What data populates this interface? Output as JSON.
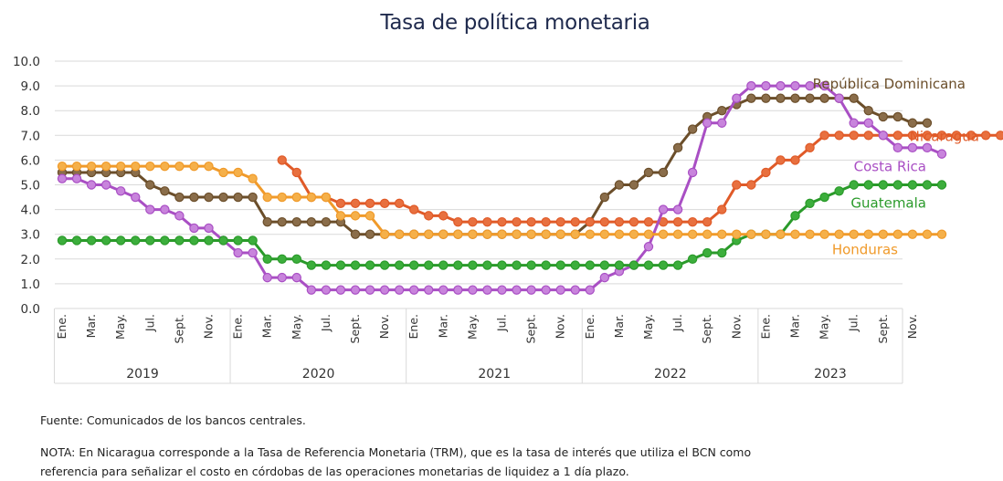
{
  "chart_data": {
    "type": "line",
    "title": "Tasa de política monetaria",
    "ylim": [
      0,
      10
    ],
    "yticks": [
      "0.0",
      "1.0",
      "2.0",
      "3.0",
      "4.0",
      "5.0",
      "6.0",
      "7.0",
      "8.0",
      "9.0",
      "10.0"
    ],
    "grid": true,
    "x_start": "2019-01",
    "month_tick_labels": [
      "Ene.",
      "Mar.",
      "May.",
      "Jul.",
      "Sept.",
      "Nov."
    ],
    "years": [
      "2019",
      "2020",
      "2021",
      "2022",
      "2023"
    ],
    "legend": "labels at end of lines",
    "series": [
      {
        "name": "República Dominicana",
        "color": "#6b4e2a",
        "marker_color": "#8a6d4a",
        "start_index": 0,
        "values": [
          5.5,
          5.5,
          5.5,
          5.5,
          5.5,
          5.5,
          5.0,
          4.75,
          4.5,
          4.5,
          4.5,
          4.5,
          4.5,
          4.5,
          3.5,
          3.5,
          3.5,
          3.5,
          3.5,
          3.5,
          3.0,
          3.0,
          3.0,
          3.0,
          3.0,
          3.0,
          3.0,
          3.0,
          3.0,
          3.0,
          3.0,
          3.0,
          3.0,
          3.0,
          3.0,
          3.0,
          3.5,
          4.5,
          5.0,
          5.0,
          5.5,
          5.5,
          6.5,
          7.25,
          7.75,
          8.0,
          8.25,
          8.5,
          8.5,
          8.5,
          8.5,
          8.5,
          8.5,
          8.5,
          8.5,
          8.0,
          7.75,
          7.75,
          7.5,
          7.5
        ]
      },
      {
        "name": "Nicaragua",
        "color": "#e05a28",
        "marker_color": "#e8703f",
        "start_index": 15,
        "values": [
          6.0,
          5.5,
          4.5,
          4.5,
          4.25,
          4.25,
          4.25,
          4.25,
          4.25,
          4.0,
          3.75,
          3.75,
          3.5,
          3.5,
          3.5,
          3.5,
          3.5,
          3.5,
          3.5,
          3.5,
          3.5,
          3.5,
          3.5,
          3.5,
          3.5,
          3.5,
          3.5,
          3.5,
          3.5,
          3.5,
          4.0,
          5.0,
          5.0,
          5.5,
          6.0,
          6.0,
          6.5,
          7.0,
          7.0,
          7.0,
          7.0,
          7.0,
          7.0,
          7.0,
          7.0,
          7.0,
          7.0,
          7.0,
          7.0,
          7.0,
          7.0
        ]
      },
      {
        "name": "Costa Rica",
        "color": "#a94fc4",
        "marker_color": "#c884dc",
        "start_index": 0,
        "values": [
          5.25,
          5.25,
          5.0,
          5.0,
          4.75,
          4.5,
          4.0,
          4.0,
          3.75,
          3.25,
          3.25,
          2.75,
          2.25,
          2.25,
          1.25,
          1.25,
          1.25,
          0.75,
          0.75,
          0.75,
          0.75,
          0.75,
          0.75,
          0.75,
          0.75,
          0.75,
          0.75,
          0.75,
          0.75,
          0.75,
          0.75,
          0.75,
          0.75,
          0.75,
          0.75,
          0.75,
          0.75,
          1.25,
          1.5,
          1.75,
          2.5,
          4.0,
          4.0,
          5.5,
          7.5,
          7.5,
          8.5,
          9.0,
          9.0,
          9.0,
          9.0,
          9.0,
          9.0,
          8.5,
          7.5,
          7.5,
          7.0,
          6.5,
          6.5,
          6.5,
          6.25
        ]
      },
      {
        "name": "Guatemala",
        "color": "#2a9a2a",
        "marker_color": "#3cae3c",
        "start_index": 0,
        "values": [
          2.75,
          2.75,
          2.75,
          2.75,
          2.75,
          2.75,
          2.75,
          2.75,
          2.75,
          2.75,
          2.75,
          2.75,
          2.75,
          2.75,
          2.0,
          2.0,
          2.0,
          1.75,
          1.75,
          1.75,
          1.75,
          1.75,
          1.75,
          1.75,
          1.75,
          1.75,
          1.75,
          1.75,
          1.75,
          1.75,
          1.75,
          1.75,
          1.75,
          1.75,
          1.75,
          1.75,
          1.75,
          1.75,
          1.75,
          1.75,
          1.75,
          1.75,
          1.75,
          2.0,
          2.25,
          2.25,
          2.75,
          3.0,
          3.0,
          3.0,
          3.75,
          4.25,
          4.5,
          4.75,
          5.0,
          5.0,
          5.0,
          5.0,
          5.0,
          5.0,
          5.0
        ]
      },
      {
        "name": "Honduras",
        "color": "#f09a2a",
        "marker_color": "#f5b04a",
        "start_index": 0,
        "values": [
          5.75,
          5.75,
          5.75,
          5.75,
          5.75,
          5.75,
          5.75,
          5.75,
          5.75,
          5.75,
          5.75,
          5.5,
          5.5,
          5.25,
          4.5,
          4.5,
          4.5,
          4.5,
          4.5,
          3.75,
          3.75,
          3.75,
          3.0,
          3.0,
          3.0,
          3.0,
          3.0,
          3.0,
          3.0,
          3.0,
          3.0,
          3.0,
          3.0,
          3.0,
          3.0,
          3.0,
          3.0,
          3.0,
          3.0,
          3.0,
          3.0,
          3.0,
          3.0,
          3.0,
          3.0,
          3.0,
          3.0,
          3.0,
          3.0,
          3.0,
          3.0,
          3.0,
          3.0,
          3.0,
          3.0,
          3.0,
          3.0,
          3.0,
          3.0,
          3.0,
          3.0
        ]
      }
    ]
  },
  "footer": {
    "source": "Fuente: Comunicados de los bancos centrales.",
    "note": "NOTA: En Nicaragua corresponde a la Tasa de Referencia Monetaria (TRM), que es la tasa de interés que utiliza el BCN como referencia para señalizar el costo en córdobas de las operaciones monetarias de liquidez a 1 día plazo."
  }
}
